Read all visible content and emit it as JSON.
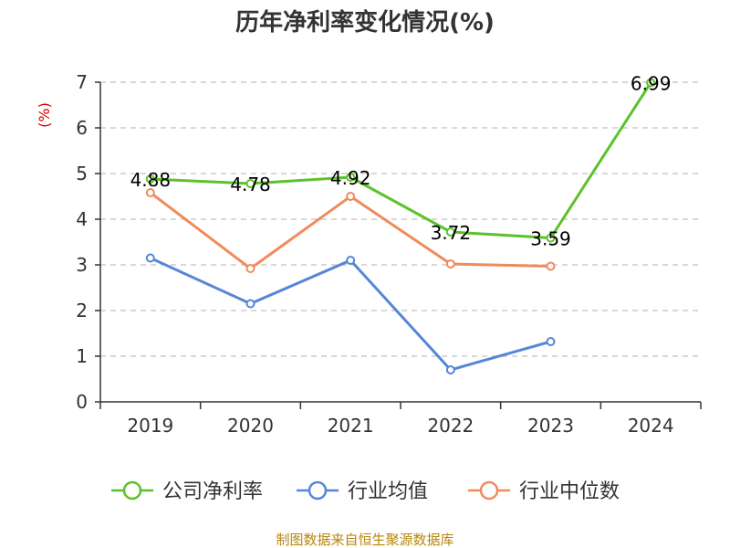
{
  "chart_data": {
    "type": "line",
    "title": "历年净利率变化情况(%)",
    "ylabel": "(%)",
    "xlabel": "",
    "categories": [
      "2019",
      "2020",
      "2021",
      "2022",
      "2023",
      "2024"
    ],
    "ylim": [
      0,
      7
    ],
    "yticks": [
      "0",
      "1",
      "2",
      "3",
      "4",
      "5",
      "6",
      "7"
    ],
    "grid": true,
    "legend_position": "bottom",
    "series": [
      {
        "name": "公司净利率",
        "color": "#5cc22b",
        "values": [
          4.88,
          4.78,
          4.92,
          3.72,
          3.59,
          6.99
        ],
        "labels": [
          "4.88",
          "4.78",
          "4.92",
          "3.72",
          "3.59",
          "6.99"
        ]
      },
      {
        "name": "行业均值",
        "color": "#5686d9",
        "values": [
          3.15,
          2.15,
          3.1,
          0.7,
          1.32,
          null
        ]
      },
      {
        "name": "行业中位数",
        "color": "#f08b5b",
        "values": [
          4.58,
          2.92,
          4.5,
          3.02,
          2.97,
          null
        ]
      }
    ],
    "source": "制图数据来自恒生聚源数据库"
  }
}
